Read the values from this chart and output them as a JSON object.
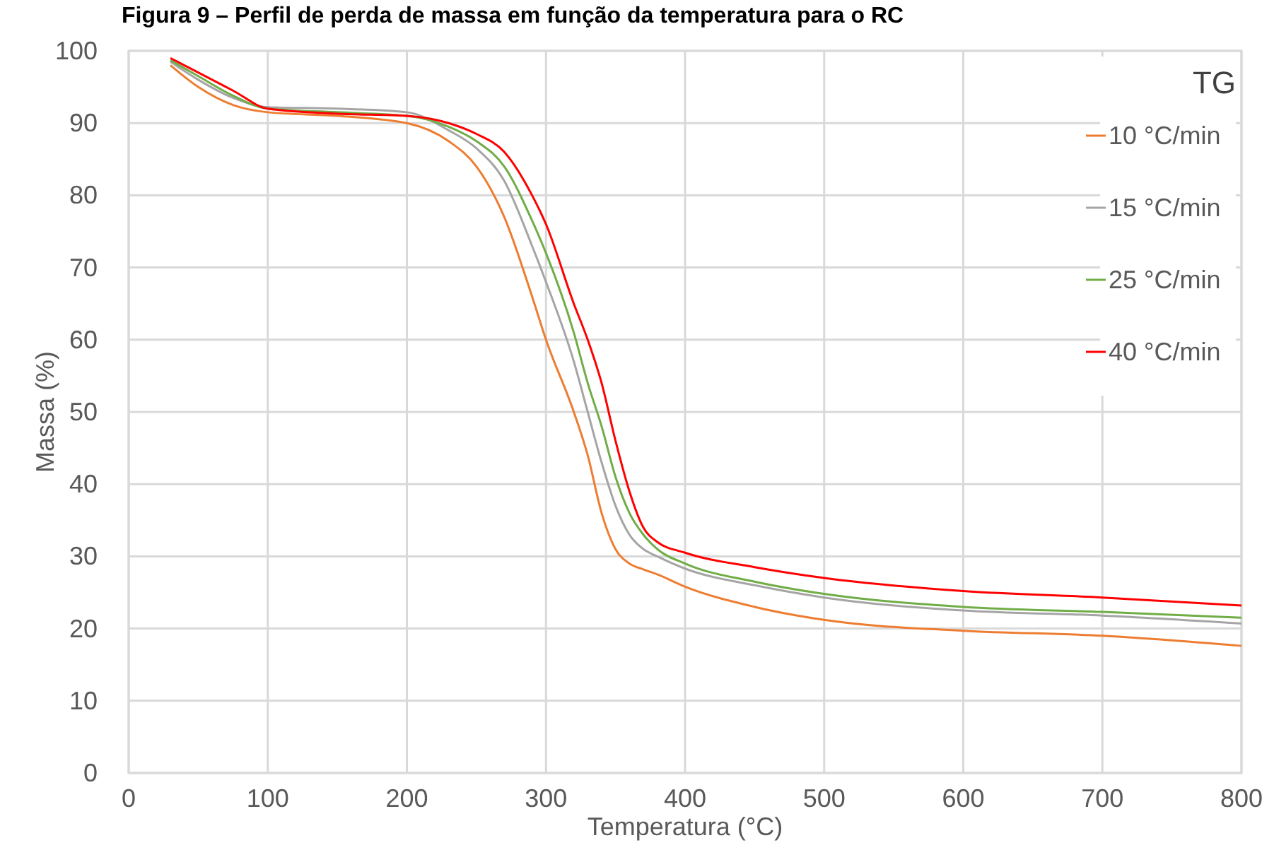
{
  "chart_data": {
    "type": "line",
    "title": "Figura 9 – Perfil de perda de massa em função da temperatura para o RC",
    "xlabel": "Temperatura (°C)",
    "ylabel": "Massa (%)",
    "legend_title": "TG",
    "x": [
      30,
      50,
      75,
      100,
      150,
      200,
      230,
      250,
      270,
      290,
      300,
      320,
      330,
      340,
      350,
      360,
      370,
      380,
      400,
      450,
      500,
      600,
      700,
      800
    ],
    "series": [
      {
        "name": "10 °C/min",
        "color": "#ed7d31",
        "values": [
          98,
          95,
          92.5,
          91.5,
          91,
          90,
          87.5,
          84,
          77,
          66,
          60,
          50,
          44,
          36,
          31,
          29,
          28.2,
          27.5,
          25.8,
          23,
          21.2,
          19.7,
          19,
          17.6
        ]
      },
      {
        "name": "15 °C/min",
        "color": "#a5a5a5",
        "values": [
          98.5,
          96,
          93.5,
          92.2,
          92,
          91.5,
          89,
          86.5,
          82,
          73,
          68,
          57,
          50,
          43,
          37,
          33,
          31,
          30,
          28.3,
          26,
          24.3,
          22.5,
          21.8,
          20.7
        ]
      },
      {
        "name": "25 °C/min",
        "color": "#70ad47",
        "values": [
          98.7,
          96.5,
          93.8,
          92,
          91.5,
          91,
          89.5,
          87.5,
          84,
          76.5,
          72,
          61,
          54,
          48,
          41,
          36,
          33,
          31,
          29,
          26.5,
          24.8,
          23,
          22.3,
          21.5
        ]
      },
      {
        "name": "40 °C/min",
        "color": "#ff0000",
        "values": [
          99,
          97,
          94.5,
          92,
          91.3,
          91,
          90,
          88.5,
          86,
          80,
          76,
          65,
          60,
          54,
          46,
          39,
          34,
          32,
          30.5,
          28.5,
          27,
          25.2,
          24.3,
          23.2
        ]
      }
    ],
    "xlim": [
      0,
      800
    ],
    "xticks": [
      0,
      100,
      200,
      300,
      400,
      500,
      600,
      700,
      800
    ],
    "ylim": [
      0,
      100
    ],
    "yticks": [
      0,
      10,
      20,
      30,
      40,
      50,
      60,
      70,
      80,
      90,
      100
    ],
    "grid": true,
    "legend": "right",
    "marker": "none",
    "line_style": "solid"
  }
}
